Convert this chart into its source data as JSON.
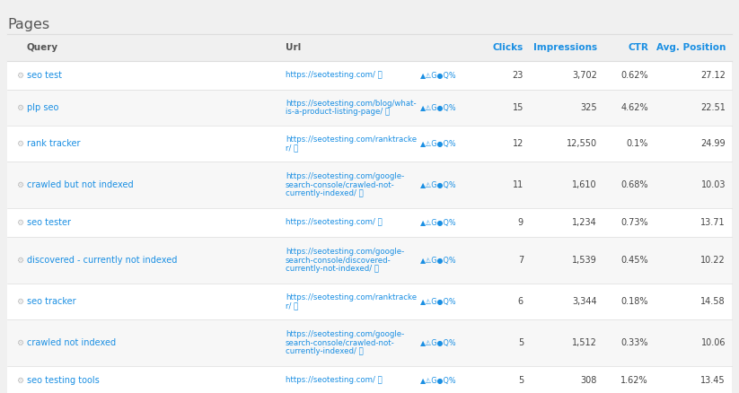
{
  "title": "Pages",
  "headers": [
    "Query",
    "Url",
    "Clicks",
    "Impressions",
    "CTR",
    "Avg. Position"
  ],
  "header_colors": [
    "#555555",
    "#555555",
    "#1a8fe3",
    "#1a8fe3",
    "#1a8fe3",
    "#1a8fe3"
  ],
  "rows": [
    {
      "query": "seo test",
      "url_line1": "https://seotesting.com/ ⧉",
      "url_line2": "",
      "url_line3": "",
      "clicks": "23",
      "impressions": "3,702",
      "ctr": "0.62%",
      "avg_position": "27.12",
      "url_lines": 1
    },
    {
      "query": "plp seo",
      "url_line1": "https://seotesting.com/blog/what-",
      "url_line2": "is-a-product-listing-page/ ⧉",
      "url_line3": "",
      "clicks": "15",
      "impressions": "325",
      "ctr": "4.62%",
      "avg_position": "22.51",
      "url_lines": 2
    },
    {
      "query": "rank tracker",
      "url_line1": "https://seotesting.com/ranktracke",
      "url_line2": "r/ ⧉",
      "url_line3": "",
      "clicks": "12",
      "impressions": "12,550",
      "ctr": "0.1%",
      "avg_position": "24.99",
      "url_lines": 2
    },
    {
      "query": "crawled but not indexed",
      "url_line1": "https://seotesting.com/google-",
      "url_line2": "search-console/crawled-not-",
      "url_line3": "currently-indexed/ ⧉",
      "clicks": "11",
      "impressions": "1,610",
      "ctr": "0.68%",
      "avg_position": "10.03",
      "url_lines": 3
    },
    {
      "query": "seo tester",
      "url_line1": "https://seotesting.com/ ⧉",
      "url_line2": "",
      "url_line3": "",
      "clicks": "9",
      "impressions": "1,234",
      "ctr": "0.73%",
      "avg_position": "13.71",
      "url_lines": 1
    },
    {
      "query": "discovered - currently not indexed",
      "url_line1": "https://seotesting.com/google-",
      "url_line2": "search-console/discovered-",
      "url_line3": "currently-not-indexed/ ⧉",
      "clicks": "7",
      "impressions": "1,539",
      "ctr": "0.45%",
      "avg_position": "10.22",
      "url_lines": 3
    },
    {
      "query": "seo tracker",
      "url_line1": "https://seotesting.com/ranktracke",
      "url_line2": "r/ ⧉",
      "url_line3": "",
      "clicks": "6",
      "impressions": "3,344",
      "ctr": "0.18%",
      "avg_position": "14.58",
      "url_lines": 2
    },
    {
      "query": "crawled not indexed",
      "url_line1": "https://seotesting.com/google-",
      "url_line2": "search-console/crawled-not-",
      "url_line3": "currently-indexed/ ⧉",
      "clicks": "5",
      "impressions": "1,512",
      "ctr": "0.33%",
      "avg_position": "10.06",
      "url_lines": 3
    },
    {
      "query": "seo testing tools",
      "url_line1": "https://seotesting.com/ ⧉",
      "url_line2": "",
      "url_line3": "",
      "clicks": "5",
      "impressions": "308",
      "ctr": "1.62%",
      "avg_position": "13.45",
      "url_lines": 1
    }
  ],
  "bg_color": "#f0f0f0",
  "table_bg": "#ffffff",
  "row_alt_bg": "#f7f7f7",
  "link_color": "#1a8fe3",
  "text_color": "#444444",
  "icon_color": "#bbbbbb",
  "divider_color": "#dddddd",
  "header_text_dark": "#555555",
  "title_color": "#555555"
}
